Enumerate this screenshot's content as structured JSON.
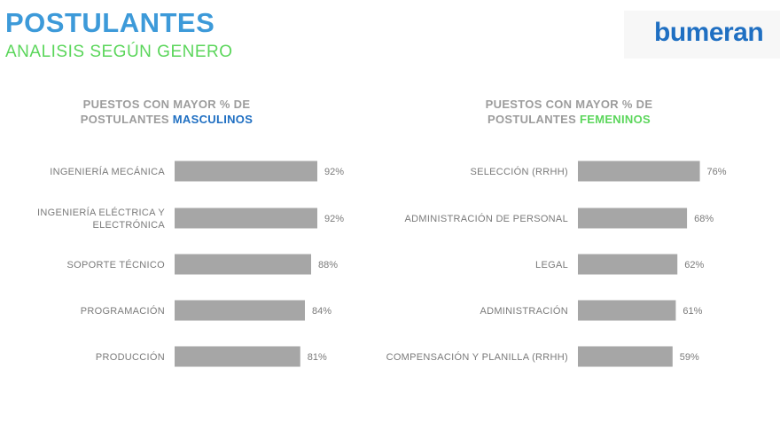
{
  "header": {
    "title": "POSTULANTES",
    "subtitle": "ANALISIS SEGÚN GENERO",
    "logo": "bumeran"
  },
  "colors": {
    "title": "#3d9ad9",
    "subtitle": "#5bd65b",
    "logo": "#1f6fc2",
    "bar": "#a6a6a6",
    "label": "#7a7a7a",
    "masculino_highlight": "#1f6fc2",
    "femenino_highlight": "#5bd65b"
  },
  "chart_data": [
    {
      "type": "bar",
      "orientation": "horizontal",
      "title_line1": "PUESTOS CON MAYOR % DE",
      "title_line2_prefix": "POSTULANTES ",
      "title_highlight": "MASCULINOS",
      "categories": [
        [
          "INGENIERÍA MECÁNICA"
        ],
        [
          "INGENIERÍA ELÉCTRICA Y",
          "ELECTRÓNICA"
        ],
        [
          "SOPORTE TÉCNICO"
        ],
        [
          "PROGRAMACIÓN"
        ],
        [
          "PRODUCCIÓN"
        ]
      ],
      "values": [
        92,
        92,
        88,
        84,
        81
      ],
      "value_labels": [
        "92%",
        "92%",
        "88%",
        "84%",
        "81%"
      ],
      "unit": "%"
    },
    {
      "type": "bar",
      "orientation": "horizontal",
      "title_line1": "PUESTOS CON MAYOR % DE",
      "title_line2_prefix": "POSTULANTES ",
      "title_highlight": "FEMENINOS",
      "categories": [
        [
          "SELECCIÓN (RRHH)"
        ],
        [
          "ADMINISTRACIÓN DE PERSONAL"
        ],
        [
          "LEGAL"
        ],
        [
          "ADMINISTRACIÓN"
        ],
        [
          "COMPENSACIÓN Y PLANILLA (RRHH)"
        ]
      ],
      "values": [
        76,
        68,
        62,
        61,
        59
      ],
      "value_labels": [
        "76%",
        "68%",
        "62%",
        "61%",
        "59%"
      ],
      "unit": "%"
    }
  ]
}
